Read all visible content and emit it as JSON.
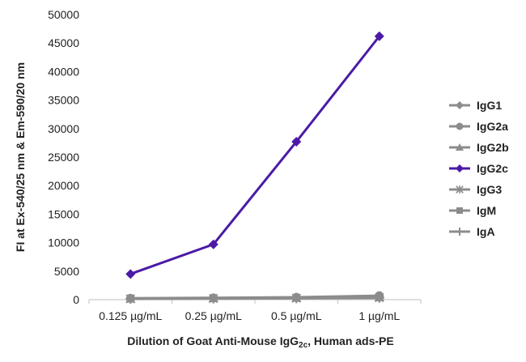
{
  "chart_data": {
    "type": "line",
    "categories": [
      "0.125 µg/mL",
      "0.25 µg/mL",
      "0.5 µg/mL",
      "1 µg/mL"
    ],
    "ylabel": "FI at Ex-540/25 nm & Em-590/20 nm",
    "xlabel_parts": [
      "Dilution of Goat Anti-Mouse IgG",
      "2c",
      ", Human ads-PE"
    ],
    "ylim": [
      0,
      50000
    ],
    "yticks": [
      "0",
      "5000",
      "10000",
      "15000",
      "20000",
      "25000",
      "30000",
      "35000",
      "40000",
      "45000",
      "50000"
    ],
    "grid": false,
    "legend_position": "right",
    "series": [
      {
        "name": "IgG1",
        "marker": "diamond",
        "color": "#8c8c8c",
        "values": [
          200,
          280,
          350,
          500
        ]
      },
      {
        "name": "IgG2a",
        "marker": "circle",
        "color": "#8c8c8c",
        "values": [
          250,
          320,
          420,
          700
        ]
      },
      {
        "name": "IgG2b",
        "marker": "triangle",
        "color": "#8c8c8c",
        "values": [
          180,
          250,
          320,
          450
        ]
      },
      {
        "name": "IgG2c",
        "marker": "diamond",
        "color": "#4b1aa6",
        "values": [
          4500,
          9700,
          27700,
          46200
        ]
      },
      {
        "name": "IgG3",
        "marker": "star",
        "color": "#8c8c8c",
        "values": [
          150,
          200,
          260,
          350
        ]
      },
      {
        "name": "IgM",
        "marker": "square",
        "color": "#8c8c8c",
        "values": [
          170,
          230,
          300,
          400
        ]
      },
      {
        "name": "IgA",
        "marker": "plus",
        "color": "#8c8c8c",
        "values": [
          120,
          180,
          230,
          300
        ]
      }
    ]
  }
}
